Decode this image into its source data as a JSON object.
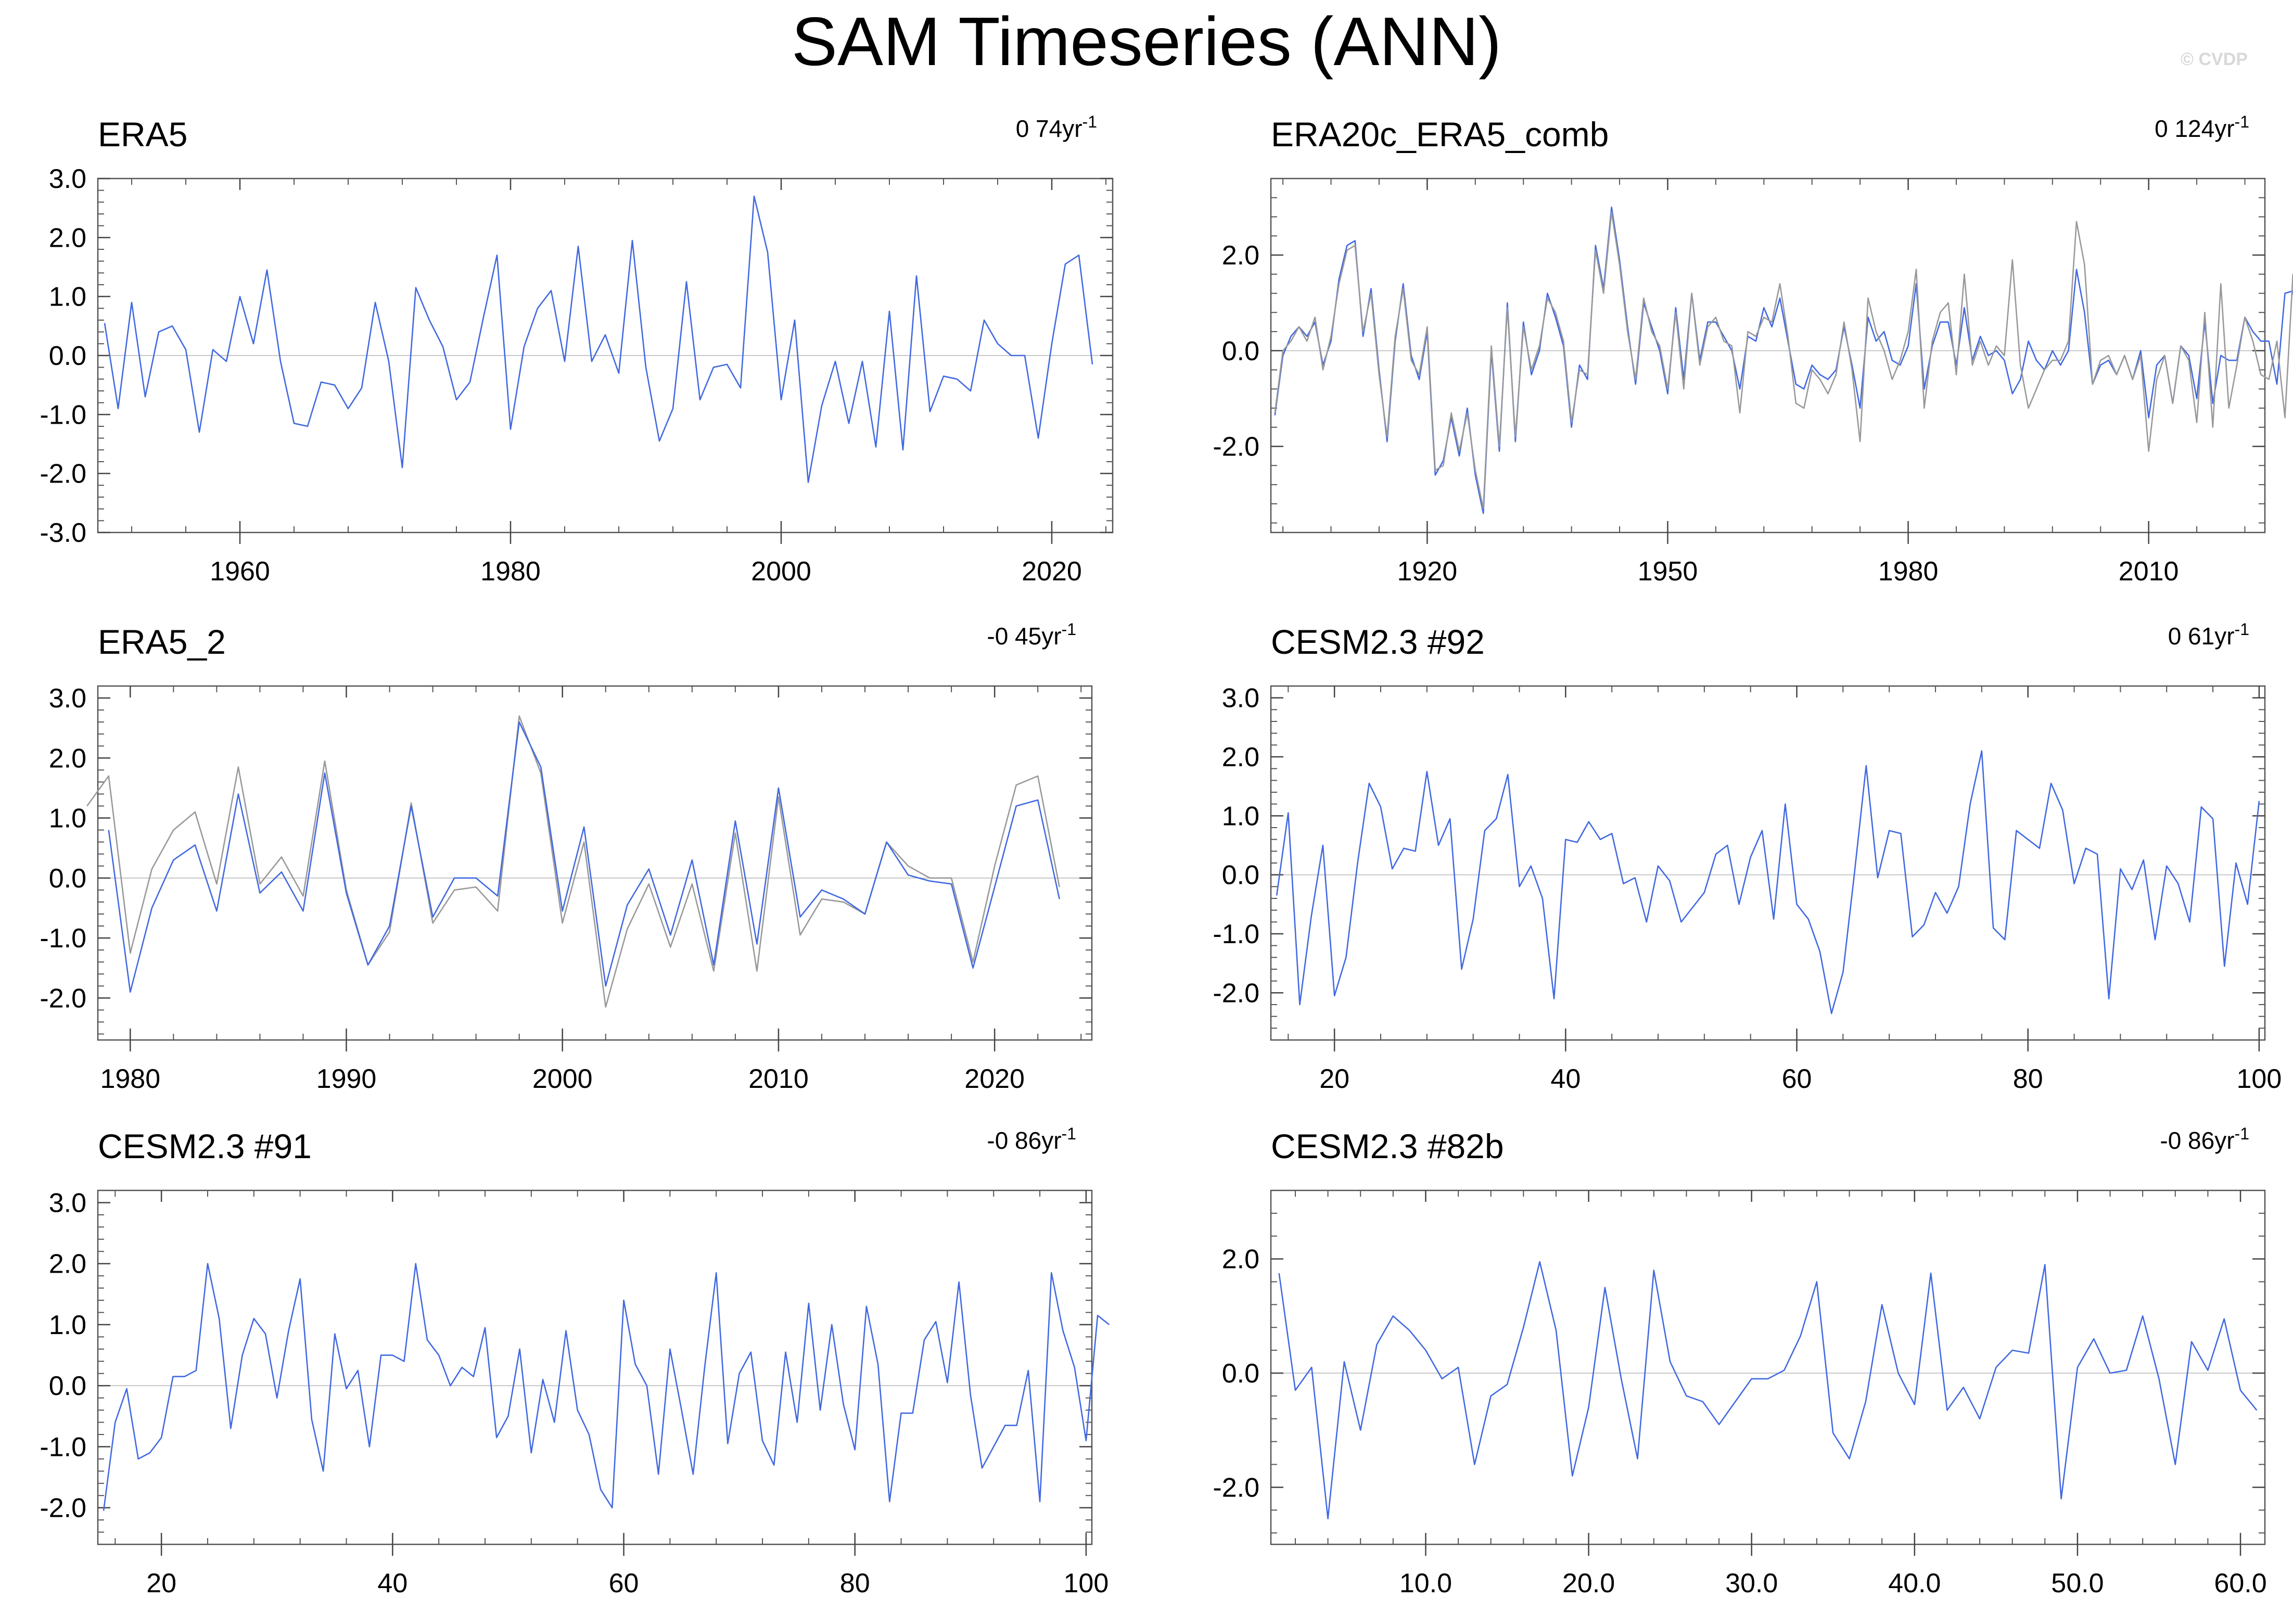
{
  "title": "SAM Timeseries (ANN)",
  "watermark": "© CVDP",
  "chart_data": [
    {
      "type": "line",
      "panel_title": "ERA5",
      "trend": {
        "value": "0 74",
        "unit": "yr",
        "exp": "-1"
      },
      "xlim": [
        1949.5,
        2024.5
      ],
      "ylim": [
        -3.0,
        3.0
      ],
      "xticks": [
        1960,
        1980,
        2000,
        2020
      ],
      "xtick_labels": [
        "1960",
        "1980",
        "2000",
        "2020"
      ],
      "yticks": [
        -3.0,
        -2.0,
        -1.0,
        0.0,
        1.0,
        2.0,
        3.0
      ],
      "ytick_labels": [
        "-3.0",
        "-2.0",
        "-1.0",
        "0.0",
        "1.0",
        "2.0",
        "3.0"
      ],
      "grid": false,
      "x_start": 1950,
      "series": [
        {
          "color": "#4169e1",
          "values": [
            0.55,
            -0.9,
            0.9,
            -0.7,
            0.4,
            0.5,
            0.1,
            -1.3,
            0.1,
            -0.1,
            1.0,
            0.2,
            1.45,
            -0.1,
            -1.15,
            -1.2,
            -0.45,
            -0.5,
            -0.9,
            -0.55,
            0.9,
            -0.1,
            -1.9,
            1.15,
            0.6,
            0.15,
            -0.75,
            -0.45,
            0.65,
            1.7,
            -1.25,
            0.15,
            0.8,
            1.1,
            -0.1,
            1.85,
            -0.1,
            0.35,
            -0.3,
            1.95,
            -0.2,
            -1.45,
            -0.9,
            1.25,
            -0.75,
            -0.2,
            -0.15,
            -0.55,
            2.7,
            1.75,
            -0.75,
            0.6,
            -2.15,
            -0.85,
            -0.1,
            -1.15,
            -0.1,
            -1.55,
            0.75,
            -1.6,
            1.35,
            -0.95,
            -0.35,
            -0.4,
            -0.6,
            0.6,
            0.2,
            0.0,
            0.0,
            -1.4,
            0.2,
            1.55,
            1.7,
            -0.15
          ]
        }
      ]
    },
    {
      "type": "line",
      "panel_title": "ERA20c_ERA5_comb",
      "trend": {
        "value": "0 124",
        "unit": "yr",
        "exp": "-1"
      },
      "xlim": [
        1900.5,
        2024.5
      ],
      "ylim": [
        -3.8,
        3.6
      ],
      "xticks": [
        1920,
        1950,
        1980,
        2010
      ],
      "xtick_labels": [
        "1920",
        "1950",
        "1980",
        "2010"
      ],
      "yticks": [
        -2.0,
        0.0,
        2.0
      ],
      "ytick_labels": [
        "-2.0",
        "0.0",
        "2.0"
      ],
      "grid": false,
      "x_start": 1901,
      "series": [
        {
          "color": "#4169e1",
          "values": [
            -1.35,
            -0.1,
            0.3,
            0.5,
            0.3,
            0.6,
            -0.3,
            0.2,
            1.5,
            2.2,
            2.3,
            0.3,
            1.3,
            -0.4,
            -1.9,
            0.2,
            1.4,
            -0.1,
            -0.6,
            0.4,
            -2.6,
            -2.3,
            -1.4,
            -2.2,
            -1.2,
            -2.6,
            -3.4,
            0.0,
            -2.1,
            1.0,
            -1.9,
            0.6,
            -0.5,
            0.0,
            1.2,
            0.7,
            0.1,
            -1.6,
            -0.3,
            -0.6,
            2.2,
            1.3,
            3.0,
            1.9,
            0.5,
            -0.7,
            1.0,
            0.5,
            0.0,
            -0.9,
            0.9,
            -0.6,
            1.2,
            -0.2,
            0.6,
            0.6,
            0.3,
            0.0,
            -0.8,
            0.3,
            0.2,
            0.9,
            0.5,
            1.1,
            0.2,
            -0.7,
            -0.8,
            -0.3,
            -0.5,
            -0.6,
            -0.4,
            0.5,
            -0.3,
            -1.2,
            0.7,
            0.2,
            0.4,
            -0.2,
            -0.3,
            0.1,
            1.4,
            -0.8,
            0.1,
            0.6,
            0.6,
            -0.3,
            0.9,
            -0.2,
            0.3,
            -0.1,
            0.0,
            -0.2,
            -0.9,
            -0.6,
            0.2,
            -0.2,
            -0.4,
            0.0,
            -0.3,
            0.0,
            1.7,
            0.8,
            -0.7,
            -0.3,
            -0.2,
            -0.5,
            -0.1,
            -0.6,
            0.0,
            -1.4,
            -0.3,
            -0.1,
            -1.1,
            0.1,
            -0.1,
            -1.0,
            0.6,
            -1.1,
            -0.1,
            -0.2,
            -0.2,
            0.7,
            0.4,
            0.2,
            0.2,
            -0.7,
            1.2,
            1.25,
            0.1
          ]
        },
        {
          "color": "#999999",
          "values": [
            -1.3,
            0.0,
            0.2,
            0.5,
            0.2,
            0.7,
            -0.4,
            0.3,
            1.4,
            2.1,
            2.2,
            0.4,
            1.2,
            -0.5,
            -1.8,
            0.3,
            1.3,
            -0.2,
            -0.5,
            0.5,
            -2.5,
            -2.4,
            -1.3,
            -2.1,
            -1.3,
            -2.5,
            -3.3,
            0.1,
            -2.0,
            0.9,
            -1.8,
            0.5,
            -0.4,
            0.1,
            1.1,
            0.8,
            0.2,
            -1.5,
            -0.4,
            -0.5,
            2.1,
            1.2,
            2.9,
            1.8,
            0.4,
            -0.6,
            1.1,
            0.4,
            0.1,
            -0.8,
            0.8,
            -0.8,
            1.2,
            -0.3,
            0.5,
            0.7,
            0.2,
            0.1,
            -1.3,
            0.4,
            0.3,
            0.7,
            0.6,
            1.4,
            0.3,
            -1.1,
            -1.2,
            -0.4,
            -0.6,
            -0.9,
            -0.5,
            0.6,
            -0.4,
            -1.9,
            1.1,
            0.4,
            0.0,
            -0.6,
            -0.2,
            0.4,
            1.7,
            -1.2,
            0.2,
            0.8,
            1.0,
            -0.5,
            1.6,
            -0.3,
            0.2,
            -0.3,
            0.1,
            -0.1,
            1.9,
            -0.3,
            -1.2,
            -0.8,
            -0.4,
            -0.2,
            -0.2,
            0.2,
            2.7,
            1.8,
            -0.7,
            -0.2,
            -0.1,
            -0.5,
            -0.1,
            -0.6,
            -0.1,
            -2.1,
            -0.6,
            -0.1,
            -1.1,
            0.1,
            -0.2,
            -1.5,
            0.8,
            -1.6,
            1.4,
            -1.2,
            -0.3,
            0.7,
            0.2,
            -0.5,
            -0.6,
            0.2,
            -1.4,
            1.6,
            1.7,
            -0.2
          ]
        }
      ]
    },
    {
      "type": "line",
      "panel_title": "ERA5_2",
      "trend": {
        "value": "-0 45",
        "unit": "yr",
        "exp": "-1"
      },
      "xlim": [
        1978.5,
        2024.5
      ],
      "ylim": [
        -2.7,
        3.2
      ],
      "xticks": [
        1980,
        1990,
        2000,
        2010,
        2020
      ],
      "xtick_labels": [
        "1980",
        "1990",
        "2000",
        "2010",
        "2020"
      ],
      "yticks": [
        -2.0,
        -1.0,
        0.0,
        1.0,
        2.0,
        3.0
      ],
      "ytick_labels": [
        "-2.0",
        "-1.0",
        "0.0",
        "1.0",
        "2.0",
        "3.0"
      ],
      "grid": false,
      "x_start": 1978,
      "series": [
        {
          "color": "#999999",
          "values": [
            1.2,
            1.7,
            -1.25,
            0.15,
            0.8,
            1.1,
            -0.1,
            1.85,
            -0.1,
            0.35,
            -0.3,
            1.95,
            -0.2,
            -1.45,
            -0.9,
            1.25,
            -0.75,
            -0.2,
            -0.15,
            -0.55,
            2.7,
            1.75,
            -0.75,
            0.6,
            -2.15,
            -0.85,
            -0.1,
            -1.15,
            -0.1,
            -1.55,
            0.75,
            -1.55,
            1.35,
            -0.95,
            -0.35,
            -0.4,
            -0.6,
            0.6,
            0.2,
            0.0,
            0.0,
            -1.4,
            0.2,
            1.55,
            1.7,
            -0.15
          ]
        },
        {
          "color": "#4169e1",
          "values": [
            null,
            0.8,
            -1.9,
            -0.5,
            0.3,
            0.55,
            -0.55,
            1.4,
            -0.25,
            0.1,
            -0.55,
            1.75,
            -0.25,
            -1.45,
            -0.8,
            1.2,
            -0.65,
            0.0,
            0.0,
            -0.3,
            2.6,
            1.85,
            -0.55,
            0.85,
            -1.8,
            -0.45,
            0.15,
            -0.95,
            0.3,
            -1.45,
            0.95,
            -1.1,
            1.5,
            -0.65,
            -0.2,
            -0.35,
            -0.6,
            0.6,
            0.05,
            -0.05,
            -0.1,
            -1.5,
            -0.15,
            1.2,
            1.3,
            -0.35
          ]
        }
      ]
    },
    {
      "type": "line",
      "panel_title": "CESM2.3 #92",
      "trend": {
        "value": "0 61",
        "unit": "yr",
        "exp": "-1"
      },
      "xlim": [
        14.5,
        100.5
      ],
      "ylim": [
        -2.8,
        3.2
      ],
      "xticks": [
        20,
        40,
        60,
        80,
        100
      ],
      "xtick_labels": [
        "20",
        "40",
        "60",
        "80",
        "100"
      ],
      "yticks": [
        -2.0,
        -1.0,
        0.0,
        1.0,
        2.0,
        3.0
      ],
      "ytick_labels": [
        "-2.0",
        "-1.0",
        "0.0",
        "1.0",
        "2.0",
        "3.0"
      ],
      "grid": false,
      "x_start": 15,
      "series": [
        {
          "color": "#4169e1",
          "values": [
            -0.35,
            1.05,
            -2.2,
            -0.7,
            0.5,
            -2.05,
            -1.4,
            0.2,
            1.55,
            1.15,
            0.1,
            0.45,
            0.4,
            1.75,
            0.5,
            0.95,
            -1.6,
            -0.75,
            0.75,
            0.95,
            1.7,
            -0.2,
            0.15,
            -0.4,
            -2.1,
            0.6,
            0.55,
            0.9,
            0.6,
            0.7,
            -0.15,
            -0.05,
            -0.8,
            0.15,
            -0.1,
            -0.8,
            -0.55,
            -0.3,
            0.35,
            0.5,
            -0.5,
            0.3,
            0.75,
            -0.75,
            1.2,
            -0.5,
            -0.75,
            -1.3,
            -2.35,
            -1.65,
            0.05,
            1.85,
            -0.05,
            0.75,
            0.7,
            -1.05,
            -0.85,
            -0.3,
            -0.65,
            -0.2,
            1.2,
            2.1,
            -0.9,
            -1.1,
            0.75,
            0.6,
            0.45,
            1.55,
            1.1,
            -0.15,
            0.45,
            0.35,
            -2.1,
            0.1,
            -0.25,
            0.25,
            -1.1,
            0.15,
            -0.15,
            -0.8,
            1.15,
            0.95,
            -1.55,
            0.2,
            -0.5,
            1.25
          ]
        }
      ]
    },
    {
      "type": "line",
      "panel_title": "CESM2.3 #91",
      "trend": {
        "value": "-0 86",
        "unit": "yr",
        "exp": "-1"
      },
      "xlim": [
        14.5,
        100.5
      ],
      "ylim": [
        -2.6,
        3.2
      ],
      "xticks": [
        20,
        40,
        60,
        80,
        100
      ],
      "xtick_labels": [
        "20",
        "40",
        "60",
        "80",
        "100"
      ],
      "yticks": [
        -2.0,
        -1.0,
        0.0,
        1.0,
        2.0,
        3.0
      ],
      "ytick_labels": [
        "-2.0",
        "-1.0",
        "0.0",
        "1.0",
        "2.0",
        "3.0"
      ],
      "grid": false,
      "x_start": 15,
      "series": [
        {
          "color": "#4169e1",
          "values": [
            -2.05,
            -0.6,
            -0.05,
            -1.2,
            -1.1,
            -0.85,
            0.15,
            0.15,
            0.25,
            2.0,
            1.1,
            -0.7,
            0.5,
            1.1,
            0.85,
            -0.2,
            0.9,
            1.75,
            -0.55,
            -1.4,
            0.85,
            -0.05,
            0.25,
            -1.0,
            0.5,
            0.5,
            0.4,
            2.0,
            0.75,
            0.5,
            0.0,
            0.3,
            0.15,
            0.95,
            -0.85,
            -0.5,
            0.6,
            -1.1,
            0.1,
            -0.6,
            0.9,
            -0.4,
            -0.8,
            -1.7,
            -2.0,
            1.4,
            0.35,
            0.0,
            -1.45,
            0.6,
            -0.4,
            -1.45,
            0.3,
            1.85,
            -0.95,
            0.2,
            0.55,
            -0.9,
            -1.3,
            0.55,
            -0.6,
            1.35,
            -0.4,
            1.0,
            -0.3,
            -1.05,
            1.3,
            0.35,
            -1.9,
            -0.45,
            -0.45,
            0.75,
            1.05,
            0.05,
            1.7,
            -0.15,
            -1.35,
            -1.0,
            -0.65,
            -0.65,
            0.25,
            -1.9,
            1.85,
            0.9,
            0.3,
            -0.9,
            1.15,
            1.0
          ]
        }
      ]
    },
    {
      "type": "line",
      "panel_title": "CESM2.3 #82b",
      "trend": {
        "value": "-0 86",
        "unit": "yr",
        "exp": "-1"
      },
      "xlim": [
        0.5,
        61.5
      ],
      "ylim": [
        -3.0,
        3.2
      ],
      "xticks": [
        10,
        20,
        30,
        40,
        50,
        60
      ],
      "xtick_labels": [
        "10.0",
        "20.0",
        "30.0",
        "40.0",
        "50.0",
        "60.0"
      ],
      "yticks": [
        -2.0,
        0.0,
        2.0
      ],
      "ytick_labels": [
        "-2.0",
        "0.0",
        "2.0"
      ],
      "grid": false,
      "x_start": 1,
      "series": [
        {
          "color": "#4169e1",
          "values": [
            1.75,
            -0.3,
            0.1,
            -2.55,
            0.2,
            -1.0,
            0.5,
            1.0,
            0.75,
            0.4,
            -0.1,
            0.1,
            -1.6,
            -0.4,
            -0.2,
            0.8,
            1.95,
            0.75,
            -1.8,
            -0.6,
            1.5,
            -0.1,
            -1.5,
            1.8,
            0.2,
            -0.4,
            -0.5,
            -0.9,
            -0.5,
            -0.1,
            -0.1,
            0.05,
            0.65,
            1.6,
            -1.05,
            -1.5,
            -0.5,
            1.2,
            0.0,
            -0.55,
            1.75,
            -0.65,
            -0.25,
            -0.8,
            0.1,
            0.4,
            0.35,
            1.9,
            -2.2,
            0.1,
            0.6,
            0.0,
            0.05,
            1.0,
            -0.1,
            -1.6,
            0.55,
            0.05,
            0.95,
            -0.3,
            -0.65
          ]
        }
      ]
    }
  ]
}
